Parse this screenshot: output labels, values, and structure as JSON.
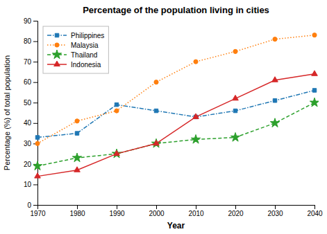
{
  "chart_data": {
    "type": "line",
    "title": "Percentage of the population living in cities",
    "xlabel": "Year",
    "ylabel": "Percentage (%) of total population",
    "x": [
      1970,
      1980,
      1990,
      2000,
      2010,
      2020,
      2030,
      2040
    ],
    "series": [
      {
        "name": "Philippines",
        "values": [
          33,
          35,
          49,
          46,
          43,
          46,
          51,
          56
        ],
        "marker": "square",
        "line_style": "dashdot"
      },
      {
        "name": "Malaysia",
        "values": [
          30,
          41,
          46,
          60,
          70,
          75,
          81,
          83
        ],
        "marker": "circle",
        "line_style": "dotted"
      },
      {
        "name": "Thailand",
        "values": [
          19,
          23,
          25,
          30,
          32,
          33,
          40,
          50
        ],
        "marker": "star",
        "line_style": "dashed"
      },
      {
        "name": "Indonesia",
        "values": [
          14,
          17,
          25,
          30,
          43,
          52,
          61,
          64
        ],
        "marker": "triangle",
        "line_style": "solid"
      }
    ],
    "xlim": [
      1970,
      2040
    ],
    "xticks": [
      1970,
      1980,
      1990,
      2000,
      2010,
      2020,
      2030,
      2040
    ],
    "ylim": [
      0,
      90
    ],
    "yticks": [
      0,
      10,
      20,
      30,
      40,
      50,
      60,
      70,
      80,
      90
    ],
    "grid": false,
    "legend": "upper left"
  }
}
